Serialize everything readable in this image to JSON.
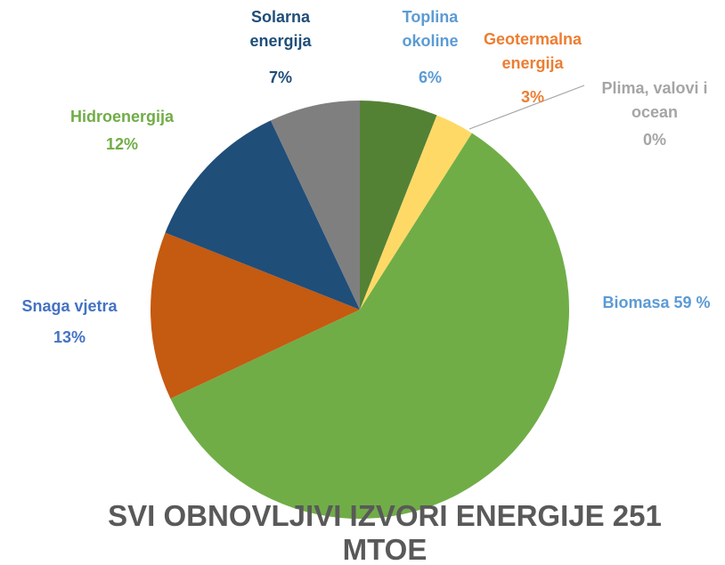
{
  "chart_data": {
    "type": "pie",
    "title": "SVI OBNOVLJIVI IZVORI ENERGIJE 251 MTOE",
    "categories": [
      "Toplina okoline",
      "Geotermalna energija",
      "Plima, valovi i ocean",
      "Biomasa",
      "Snaga vjetra",
      "Hidroenergija",
      "Solarna energija"
    ],
    "values": [
      6,
      3,
      0,
      59,
      13,
      12,
      7
    ],
    "value_labels": [
      "6%",
      "3%",
      "0%",
      "59 %",
      "13%",
      "12%",
      "7%"
    ],
    "colors": [
      "#548235",
      "#ffd966",
      "#a5a5a5",
      "#70ad47",
      "#c55a11",
      "#1f4e79",
      "#7f7f7f"
    ],
    "label_colors": [
      "#5b9bd5",
      "#ed7d31",
      "#a5a5a5",
      "#5b9bd5",
      "#4472c4",
      "#70ad47",
      "#1f4e79"
    ]
  }
}
